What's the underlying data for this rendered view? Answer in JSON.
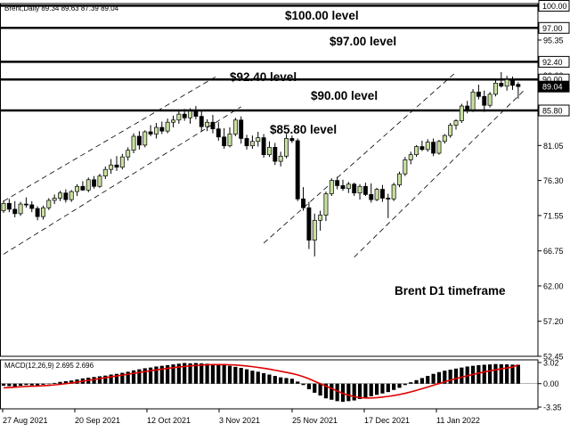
{
  "header": {
    "symbol_text": "Brent,Daily  89.34 89.63 87.39 89.04"
  },
  "chart_data": {
    "type": "candlestick",
    "title": "Brent D1 timeframe",
    "symbol": "Brent",
    "timeframe": "Daily",
    "ohlc_header": {
      "open": 89.34,
      "high": 89.63,
      "low": 87.39,
      "close": 89.04
    },
    "price_axis": {
      "ticks": [
        100.0,
        97.0,
        95.35,
        92.4,
        90.6,
        90.0,
        89.04,
        85.8,
        81.05,
        76.3,
        71.55,
        66.75,
        62.0,
        57.2,
        52.45
      ],
      "highlighted": [
        100.0,
        97.0,
        92.4,
        90.0,
        89.04,
        85.8
      ],
      "range": [
        52.45,
        100.3
      ]
    },
    "levels": [
      {
        "value": 100.0,
        "label": "$100.00 level"
      },
      {
        "value": 97.0,
        "label": "$97.00 level"
      },
      {
        "value": 92.4,
        "label": "$92.40 level"
      },
      {
        "value": 90.0,
        "label": "$90.00 level"
      },
      {
        "value": 85.8,
        "label": "$85.80 level"
      }
    ],
    "x_labels": [
      "27 Aug 2021",
      "20 Sep 2021",
      "12 Oct 2021",
      "3 Nov 2021",
      "25 Nov 2021",
      "17 Dec 2021",
      "11 Jan 2022"
    ],
    "candles": [
      [
        72.2,
        73.6,
        71.9,
        73.2
      ],
      [
        73.2,
        73.8,
        72.0,
        72.4
      ],
      [
        72.4,
        73.5,
        71.3,
        71.8
      ],
      [
        71.8,
        73.4,
        71.5,
        73.1
      ],
      [
        73.1,
        74.0,
        72.6,
        73.0
      ],
      [
        73.0,
        73.5,
        72.0,
        72.5
      ],
      [
        72.5,
        72.8,
        70.9,
        71.4
      ],
      [
        71.4,
        72.9,
        71.0,
        72.6
      ],
      [
        72.6,
        73.9,
        72.3,
        73.6
      ],
      [
        73.6,
        74.4,
        73.1,
        73.9
      ],
      [
        73.9,
        74.9,
        73.5,
        74.6
      ],
      [
        74.6,
        75.1,
        73.3,
        73.7
      ],
      [
        73.7,
        75.0,
        73.4,
        74.8
      ],
      [
        74.8,
        75.8,
        74.2,
        75.5
      ],
      [
        75.5,
        76.2,
        74.9,
        75.0
      ],
      [
        75.0,
        76.7,
        74.7,
        76.4
      ],
      [
        76.4,
        76.9,
        75.2,
        75.5
      ],
      [
        75.5,
        77.2,
        75.3,
        76.9
      ],
      [
        76.9,
        78.2,
        76.5,
        77.8
      ],
      [
        77.8,
        79.2,
        77.2,
        78.4
      ],
      [
        78.4,
        79.6,
        77.6,
        78.1
      ],
      [
        78.1,
        79.9,
        77.8,
        79.5
      ],
      [
        79.5,
        80.8,
        79.0,
        80.4
      ],
      [
        80.4,
        82.7,
        80.0,
        82.3
      ],
      [
        82.3,
        83.0,
        80.5,
        81.1
      ],
      [
        81.1,
        83.1,
        80.8,
        82.9
      ],
      [
        82.9,
        83.8,
        82.3,
        82.6
      ],
      [
        82.6,
        84.1,
        82.0,
        83.5
      ],
      [
        83.5,
        84.3,
        82.6,
        83.0
      ],
      [
        83.0,
        84.7,
        82.7,
        84.2
      ],
      [
        84.2,
        85.1,
        83.5,
        84.5
      ],
      [
        84.5,
        85.8,
        84.0,
        85.3
      ],
      [
        85.3,
        86.0,
        84.4,
        84.8
      ],
      [
        84.8,
        86.1,
        84.0,
        85.7
      ],
      [
        85.7,
        86.4,
        84.6,
        85.0
      ],
      [
        85.0,
        85.9,
        83.0,
        83.6
      ],
      [
        83.6,
        84.6,
        83.0,
        84.2
      ],
      [
        84.2,
        85.2,
        82.7,
        83.3
      ],
      [
        83.3,
        84.2,
        81.7,
        82.2
      ],
      [
        82.2,
        83.4,
        80.6,
        81.0
      ],
      [
        81.0,
        83.5,
        80.8,
        82.6
      ],
      [
        82.6,
        84.8,
        82.3,
        84.5
      ],
      [
        84.5,
        85.0,
        81.3,
        82.0
      ],
      [
        82.0,
        82.5,
        80.5,
        81.0
      ],
      [
        81.0,
        82.4,
        80.6,
        81.6
      ],
      [
        81.6,
        82.9,
        80.9,
        82.1
      ],
      [
        82.1,
        82.6,
        79.4,
        79.8
      ],
      [
        79.8,
        81.6,
        79.5,
        80.8
      ],
      [
        80.8,
        81.4,
        78.4,
        78.9
      ],
      [
        78.9,
        80.2,
        78.2,
        79.6
      ],
      [
        79.6,
        82.6,
        79.3,
        82.0
      ],
      [
        82.0,
        82.4,
        81.4,
        81.7
      ],
      [
        81.7,
        82.0,
        73.5,
        73.8
      ],
      [
        73.8,
        75.4,
        72.2,
        72.6
      ],
      [
        72.6,
        73.4,
        67.0,
        68.2
      ],
      [
        68.2,
        71.8,
        66.0,
        70.9
      ],
      [
        70.9,
        72.2,
        69.5,
        71.6
      ],
      [
        71.6,
        74.8,
        70.8,
        74.5
      ],
      [
        74.5,
        76.6,
        74.2,
        76.3
      ],
      [
        76.3,
        76.8,
        75.1,
        75.6
      ],
      [
        75.6,
        76.4,
        74.9,
        75.2
      ],
      [
        75.2,
        76.1,
        74.6,
        75.8
      ],
      [
        75.8,
        76.0,
        74.2,
        74.6
      ],
      [
        74.6,
        75.8,
        73.7,
        75.5
      ],
      [
        75.5,
        76.0,
        74.2,
        74.4
      ],
      [
        74.4,
        75.9,
        73.3,
        73.7
      ],
      [
        73.7,
        75.3,
        73.5,
        75.1
      ],
      [
        75.1,
        75.7,
        73.4,
        73.9
      ],
      [
        73.9,
        74.5,
        71.2,
        73.8
      ],
      [
        73.8,
        76.0,
        73.5,
        75.7
      ],
      [
        75.7,
        77.5,
        75.4,
        77.2
      ],
      [
        77.2,
        79.5,
        76.9,
        79.1
      ],
      [
        79.1,
        80.2,
        78.5,
        79.8
      ],
      [
        79.8,
        81.1,
        79.5,
        80.9
      ],
      [
        80.9,
        81.7,
        80.3,
        80.5
      ],
      [
        80.5,
        81.9,
        80.2,
        81.5
      ],
      [
        81.5,
        82.0,
        79.6,
        80.0
      ],
      [
        80.0,
        81.8,
        79.8,
        81.6
      ],
      [
        81.6,
        82.6,
        81.3,
        82.4
      ],
      [
        82.4,
        84.1,
        82.1,
        83.8
      ],
      [
        83.8,
        84.6,
        83.2,
        84.4
      ],
      [
        84.4,
        86.7,
        84.1,
        86.4
      ],
      [
        86.4,
        87.1,
        85.4,
        85.9
      ],
      [
        85.9,
        88.7,
        85.6,
        88.3
      ],
      [
        88.3,
        89.3,
        87.3,
        87.7
      ],
      [
        87.7,
        88.5,
        85.6,
        86.5
      ],
      [
        86.5,
        88.3,
        86.2,
        88.0
      ],
      [
        88.0,
        89.9,
        87.7,
        89.5
      ],
      [
        89.5,
        91.0,
        88.9,
        89.1
      ],
      [
        89.1,
        90.5,
        88.5,
        90.0
      ],
      [
        90.0,
        90.4,
        88.6,
        89.2
      ],
      [
        89.34,
        89.63,
        87.39,
        89.04
      ]
    ],
    "macd": {
      "label": "MACD(12,26,9) 2.695 2.696",
      "fast": 12,
      "slow": 26,
      "signal_period": 9,
      "macd_value": 2.695,
      "signal_value": 2.696,
      "axis_ticks": [
        3.02,
        0.0,
        -3.35
      ],
      "histogram": [
        -0.3,
        -0.35,
        -0.45,
        -0.3,
        -0.2,
        -0.25,
        -0.35,
        -0.15,
        0.0,
        0.1,
        0.25,
        0.35,
        0.45,
        0.6,
        0.75,
        0.85,
        0.95,
        1.05,
        1.15,
        1.3,
        1.4,
        1.55,
        1.7,
        1.9,
        2.05,
        2.2,
        2.3,
        2.45,
        2.55,
        2.65,
        2.75,
        2.85,
        2.95,
        2.9,
        2.95,
        2.9,
        2.85,
        2.8,
        2.75,
        2.65,
        2.55,
        2.4,
        2.25,
        2.05,
        1.85,
        1.7,
        1.5,
        1.3,
        1.1,
        0.9,
        0.8,
        0.7,
        0.3,
        -0.2,
        -0.8,
        -1.3,
        -1.7,
        -2.1,
        -2.3,
        -2.5,
        -2.6,
        -2.5,
        -2.4,
        -2.2,
        -2.0,
        -1.8,
        -1.6,
        -1.4,
        -1.2,
        -0.9,
        -0.6,
        -0.2,
        0.2,
        0.5,
        0.8,
        1.1,
        1.4,
        1.65,
        1.85,
        2.0,
        2.15,
        2.3,
        2.45,
        2.55,
        2.65,
        2.7,
        2.75,
        2.8,
        2.78,
        2.76,
        2.72,
        2.695
      ],
      "signal": [
        -0.6,
        -0.55,
        -0.5,
        -0.45,
        -0.4,
        -0.37,
        -0.35,
        -0.3,
        -0.25,
        -0.18,
        -0.1,
        0.0,
        0.1,
        0.22,
        0.35,
        0.47,
        0.6,
        0.72,
        0.85,
        0.97,
        1.1,
        1.22,
        1.35,
        1.48,
        1.6,
        1.73,
        1.85,
        1.97,
        2.08,
        2.18,
        2.28,
        2.37,
        2.46,
        2.54,
        2.6,
        2.66,
        2.7,
        2.72,
        2.73,
        2.72,
        2.7,
        2.66,
        2.6,
        2.52,
        2.43,
        2.32,
        2.2,
        2.07,
        1.92,
        1.77,
        1.61,
        1.45,
        1.25,
        1.0,
        0.7,
        0.35,
        0.0,
        -0.35,
        -0.7,
        -1.05,
        -1.4,
        -1.65,
        -1.85,
        -2.0,
        -2.05,
        -2.05,
        -2.0,
        -1.92,
        -1.82,
        -1.7,
        -1.55,
        -1.38,
        -1.18,
        -0.96,
        -0.72,
        -0.48,
        -0.23,
        0.02,
        0.27,
        0.5,
        0.72,
        0.93,
        1.13,
        1.32,
        1.5,
        1.67,
        1.83,
        1.98,
        2.12,
        2.25,
        2.37,
        2.696
      ]
    },
    "grid": false
  }
}
